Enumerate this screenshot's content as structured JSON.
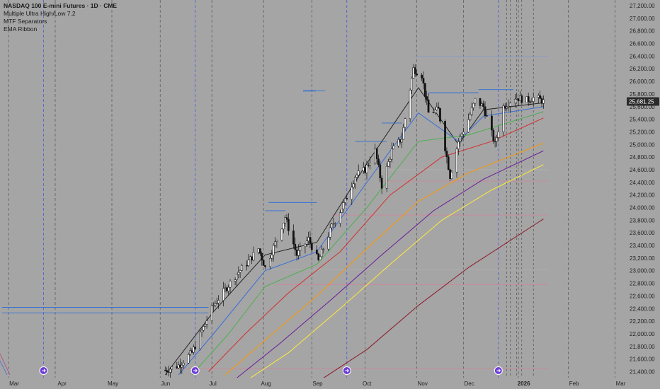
{
  "legend": {
    "title": "NASDAQ 100 E-mini Futures · 1D · CME",
    "indicator_1": "Multiple Ultra High/Low 7.2",
    "indicator_2": "MTF Separators",
    "indicator_3": "EMA Ribbon"
  },
  "chart_data": {
    "type": "candlestick",
    "instrument": "NASDAQ 100 E-mini Futures",
    "timeframe": "1D",
    "exchange": "CME",
    "y_axis": {
      "range": [
        21200,
        27300
      ],
      "tick_labels": [
        "21,400.00",
        "21,600.00",
        "21,800.00",
        "22,000.00",
        "22,200.00",
        "22,400.00",
        "22,600.00",
        "22,800.00",
        "23,000.00",
        "23,200.00",
        "23,400.00",
        "23,600.00",
        "23,800.00",
        "24,000.00",
        "24,200.00",
        "24,400.00",
        "24,600.00",
        "24,800.00",
        "25,000.00",
        "25,200.00",
        "25,400.00",
        "25,600.00",
        "25,800.00",
        "26,000.00",
        "26,200.00",
        "26,400.00",
        "26,600.00",
        "26,800.00",
        "27,000.00",
        "27,200.00"
      ]
    },
    "x_axis": {
      "tick_labels": [
        {
          "label": "Mar",
          "bold": false
        },
        {
          "label": "Apr",
          "bold": false
        },
        {
          "label": "May",
          "bold": false
        },
        {
          "label": "Jun",
          "bold": false
        },
        {
          "label": "Jul",
          "bold": false
        },
        {
          "label": "Aug",
          "bold": false
        },
        {
          "label": "Sep",
          "bold": false
        },
        {
          "label": "Oct",
          "bold": false
        },
        {
          "label": "Nov",
          "bold": false
        },
        {
          "label": "Dec",
          "bold": false
        },
        {
          "label": "2026",
          "bold": true
        },
        {
          "label": "Feb",
          "bold": false
        },
        {
          "label": "Mar",
          "bold": false
        }
      ]
    },
    "last_price": "25,681.25",
    "last_price_value": 25681.25,
    "price_path": [
      [
        "2025-06-02",
        21420
      ],
      [
        "2025-06-10",
        21500
      ],
      [
        "2025-06-18",
        21700
      ],
      [
        "2025-06-25",
        22100
      ],
      [
        "2025-07-01",
        22450
      ],
      [
        "2025-07-08",
        22700
      ],
      [
        "2025-07-15",
        22950
      ],
      [
        "2025-07-22",
        23150
      ],
      [
        "2025-07-28",
        23350
      ],
      [
        "2025-08-01",
        23050
      ],
      [
        "2025-08-08",
        23500
      ],
      [
        "2025-08-13",
        23850
      ],
      [
        "2025-08-20",
        23250
      ],
      [
        "2025-08-27",
        23500
      ],
      [
        "2025-09-02",
        23150
      ],
      [
        "2025-09-10",
        23700
      ],
      [
        "2025-09-18",
        24100
      ],
      [
        "2025-09-24",
        24500
      ],
      [
        "2025-09-30",
        24600
      ],
      [
        "2025-10-06",
        24900
      ],
      [
        "2025-10-10",
        24350
      ],
      [
        "2025-10-16",
        24900
      ],
      [
        "2025-10-22",
        25100
      ],
      [
        "2025-10-29",
        26200
      ],
      [
        "2025-11-03",
        26100
      ],
      [
        "2025-11-07",
        25500
      ],
      [
        "2025-11-13",
        25550
      ],
      [
        "2025-11-20",
        24500
      ],
      [
        "2025-11-25",
        25050
      ],
      [
        "2025-12-01",
        25400
      ],
      [
        "2025-12-05",
        25700
      ],
      [
        "2025-12-10",
        25600
      ],
      [
        "2025-12-17",
        25000
      ],
      [
        "2025-12-22",
        25600
      ],
      [
        "2025-12-29",
        25750
      ],
      [
        "2026-01-05",
        25700
      ],
      [
        "2026-01-10",
        25750
      ],
      [
        "2026-01-15",
        25681
      ]
    ],
    "ema_series": [
      {
        "color": "#222222",
        "points": [
          [
            "2025-06-02",
            21350
          ],
          [
            "2025-07-01",
            22350
          ],
          [
            "2025-08-01",
            23250
          ],
          [
            "2025-09-01",
            23450
          ],
          [
            "2025-10-01",
            24700
          ],
          [
            "2025-11-01",
            25900
          ],
          [
            "2025-11-25",
            25000
          ],
          [
            "2025-12-10",
            25550
          ],
          [
            "2026-01-15",
            25660
          ]
        ]
      },
      {
        "color": "#3a6fd8",
        "points": [
          [
            "2025-06-10",
            21350
          ],
          [
            "2025-07-01",
            22000
          ],
          [
            "2025-08-01",
            23000
          ],
          [
            "2025-09-01",
            23300
          ],
          [
            "2025-10-01",
            24400
          ],
          [
            "2025-11-01",
            25500
          ],
          [
            "2025-11-25",
            25050
          ],
          [
            "2025-12-10",
            25450
          ],
          [
            "2026-01-15",
            25600
          ]
        ]
      },
      {
        "color": "#4caf50",
        "points": [
          [
            "2025-06-18",
            21350
          ],
          [
            "2025-07-10",
            22000
          ],
          [
            "2025-08-01",
            22750
          ],
          [
            "2025-09-01",
            23100
          ],
          [
            "2025-10-01",
            24000
          ],
          [
            "2025-11-01",
            25050
          ],
          [
            "2025-12-01",
            25150
          ],
          [
            "2026-01-15",
            25520
          ]
        ]
      },
      {
        "color": "#d32f2f",
        "points": [
          [
            "2025-06-28",
            21400
          ],
          [
            "2025-07-20",
            22000
          ],
          [
            "2025-08-15",
            22650
          ],
          [
            "2025-09-15",
            23300
          ],
          [
            "2025-10-15",
            24200
          ],
          [
            "2025-11-15",
            24800
          ],
          [
            "2025-12-15",
            25050
          ],
          [
            "2026-01-15",
            25420
          ]
        ]
      },
      {
        "color": "#ff9800",
        "points": [
          [
            "2025-07-08",
            21350
          ],
          [
            "2025-08-01",
            21900
          ],
          [
            "2025-09-01",
            22600
          ],
          [
            "2025-10-01",
            23350
          ],
          [
            "2025-11-01",
            24100
          ],
          [
            "2025-12-01",
            24550
          ],
          [
            "2026-01-15",
            25020
          ]
        ]
      },
      {
        "color": "#6a1b9a",
        "points": [
          [
            "2025-07-15",
            21300
          ],
          [
            "2025-08-10",
            21850
          ],
          [
            "2025-09-10",
            22550
          ],
          [
            "2025-10-10",
            23250
          ],
          [
            "2025-11-10",
            23950
          ],
          [
            "2025-12-10",
            24450
          ],
          [
            "2026-01-15",
            24900
          ]
        ]
      },
      {
        "color": "#ffeb3b",
        "points": [
          [
            "2025-07-22",
            21280
          ],
          [
            "2025-08-15",
            21700
          ],
          [
            "2025-09-15",
            22400
          ],
          [
            "2025-10-15",
            23100
          ],
          [
            "2025-11-15",
            23800
          ],
          [
            "2025-12-15",
            24280
          ],
          [
            "2026-01-15",
            24680
          ]
        ]
      },
      {
        "color": "#8b1a2b",
        "points": [
          [
            "2025-09-05",
            21300
          ],
          [
            "2025-10-01",
            21750
          ],
          [
            "2025-11-01",
            22450
          ],
          [
            "2025-12-01",
            23050
          ],
          [
            "2026-01-15",
            23820
          ]
        ]
      }
    ],
    "horizontal_levels": [
      {
        "value": 22420,
        "from": "2025-02-24",
        "to": "2025-06-28",
        "color": "#2f6fd6"
      },
      {
        "value": 22330,
        "from": "2025-02-24",
        "to": "2025-06-28",
        "color": "#2f6fd6"
      },
      {
        "value": 21450,
        "from": "2025-06-10",
        "to": "2026-01-18",
        "color": "#c98a9a"
      },
      {
        "value": 22780,
        "from": "2025-08-08",
        "to": "2026-01-18",
        "color": "#c98a9a"
      },
      {
        "value": 23020,
        "from": "2025-08-01",
        "to": "2026-01-18",
        "color": "#b0b0b0"
      },
      {
        "value": 23880,
        "from": "2025-09-10",
        "to": "2026-01-18",
        "color": "#c98a9a"
      },
      {
        "value": 24080,
        "from": "2025-08-03",
        "to": "2025-09-01",
        "color": "#2f6fd6"
      },
      {
        "value": 23950,
        "from": "2025-08-01",
        "to": "2025-08-13",
        "color": "#2f6fd6"
      },
      {
        "value": 24420,
        "from": "2025-10-10",
        "to": "2026-01-18",
        "color": "#c98a9a"
      },
      {
        "value": 24600,
        "from": "2025-10-10",
        "to": "2026-01-18",
        "color": "#b0b0b0"
      },
      {
        "value": 25050,
        "from": "2025-09-24",
        "to": "2025-10-13",
        "color": "#2f6fd6"
      },
      {
        "value": 25340,
        "from": "2025-10-10",
        "to": "2025-10-22",
        "color": "#2f6fd6"
      },
      {
        "value": 25820,
        "from": "2025-11-07",
        "to": "2025-12-07",
        "color": "#2f6fd6"
      },
      {
        "value": 25870,
        "from": "2025-12-07",
        "to": "2025-12-28",
        "color": "#2f6fd6"
      },
      {
        "value": 26400,
        "from": "2025-10-30",
        "to": "2026-01-18",
        "color": "#8e9bc4"
      },
      {
        "value": 25850,
        "from": "2025-08-25",
        "to": "2025-09-06",
        "color": "#2f6fd6"
      }
    ],
    "grid": false,
    "legend_placement": "top-left"
  }
}
